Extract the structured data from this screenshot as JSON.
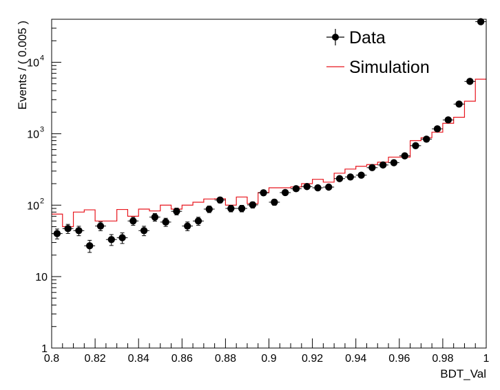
{
  "chart_data": {
    "type": "scatter",
    "title": "",
    "xlabel": "BDT_Val",
    "ylabel": "Events / ( 0.005 )",
    "xlim": [
      0.8,
      1.0
    ],
    "ylim": [
      1,
      40000
    ],
    "yscale": "log",
    "grid": false,
    "legend_position": "top-right",
    "x_ticks": [
      {
        "value": 0.8,
        "label": "0.8"
      },
      {
        "value": 0.82,
        "label": "0.82"
      },
      {
        "value": 0.84,
        "label": "0.84"
      },
      {
        "value": 0.86,
        "label": "0.86"
      },
      {
        "value": 0.88,
        "label": "0.88"
      },
      {
        "value": 0.9,
        "label": "0.9"
      },
      {
        "value": 0.92,
        "label": "0.92"
      },
      {
        "value": 0.94,
        "label": "0.94"
      },
      {
        "value": 0.96,
        "label": "0.96"
      },
      {
        "value": 0.98,
        "label": "0.98"
      },
      {
        "value": 1.0,
        "label": "1"
      }
    ],
    "y_ticks": [
      {
        "value": 1,
        "base": "1",
        "exp": ""
      },
      {
        "value": 10,
        "base": "10",
        "exp": ""
      },
      {
        "value": 100,
        "base": "10",
        "exp": "2"
      },
      {
        "value": 1000,
        "base": "10",
        "exp": "3"
      },
      {
        "value": 10000,
        "base": "10",
        "exp": "4"
      }
    ],
    "bin_width": 0.005,
    "series": [
      {
        "name": "Data",
        "kind": "points",
        "color": "#000000",
        "x": [
          0.8025,
          0.8075,
          0.8125,
          0.8175,
          0.8225,
          0.8275,
          0.8325,
          0.8375,
          0.8425,
          0.8475,
          0.8525,
          0.8575,
          0.8625,
          0.8675,
          0.8725,
          0.8775,
          0.8825,
          0.8875,
          0.8925,
          0.8975,
          0.9025,
          0.9075,
          0.9125,
          0.9175,
          0.9225,
          0.9275,
          0.9325,
          0.9375,
          0.9425,
          0.9475,
          0.9525,
          0.9575,
          0.9625,
          0.9675,
          0.9725,
          0.9775,
          0.9825,
          0.9875,
          0.9925,
          0.9975
        ],
        "values": [
          40,
          47,
          44,
          27,
          51,
          33,
          35,
          60,
          44,
          68,
          58,
          82,
          51,
          60,
          88,
          118,
          90,
          90,
          101,
          149,
          110,
          150,
          170,
          182,
          175,
          179,
          235,
          248,
          263,
          335,
          365,
          393,
          490,
          680,
          840,
          1170,
          1560,
          2600,
          5400,
          37000
        ]
      },
      {
        "name": "Simulation",
        "kind": "step",
        "color": "#e8141c",
        "x": [
          0.8025,
          0.8075,
          0.8125,
          0.8175,
          0.8225,
          0.8275,
          0.8325,
          0.8375,
          0.8425,
          0.8475,
          0.8525,
          0.8575,
          0.8625,
          0.8675,
          0.8725,
          0.8775,
          0.8825,
          0.8875,
          0.8925,
          0.8975,
          0.9025,
          0.9075,
          0.9125,
          0.9175,
          0.9225,
          0.9275,
          0.9325,
          0.9375,
          0.9425,
          0.9475,
          0.9525,
          0.9575,
          0.9625,
          0.9675,
          0.9725,
          0.9775,
          0.9825,
          0.9875,
          0.9925,
          0.9975
        ],
        "values": [
          75,
          50,
          80,
          86,
          60,
          60,
          87,
          70,
          88,
          83,
          100,
          88,
          100,
          110,
          122,
          123,
          100,
          130,
          105,
          150,
          175,
          175,
          180,
          200,
          230,
          210,
          280,
          320,
          350,
          370,
          400,
          470,
          470,
          800,
          880,
          1050,
          1400,
          1700,
          2850,
          5800
        ]
      }
    ]
  }
}
